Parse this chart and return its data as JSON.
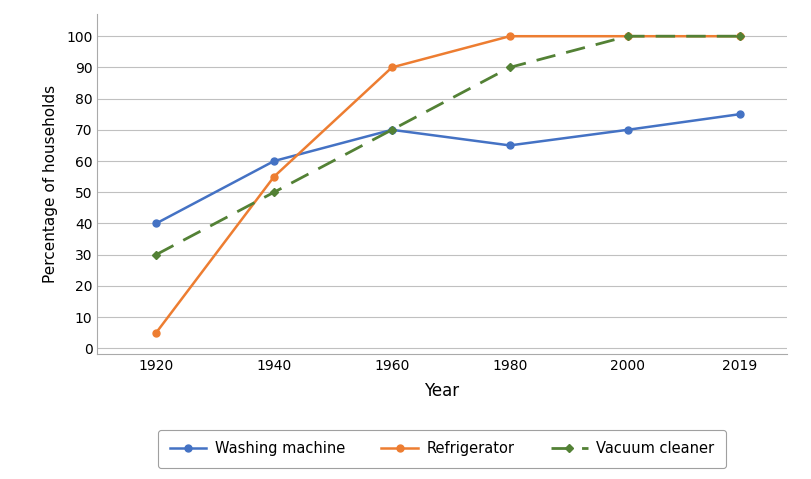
{
  "years": [
    1920,
    1940,
    1960,
    1980,
    2000,
    2019
  ],
  "washing_machine": [
    40,
    60,
    70,
    65,
    70,
    75
  ],
  "refrigerator": [
    5,
    55,
    90,
    100,
    100,
    100
  ],
  "vacuum_cleaner": [
    30,
    50,
    70,
    90,
    100,
    100
  ],
  "washing_machine_color": "#4472C4",
  "refrigerator_color": "#ED7D31",
  "vacuum_cleaner_color": "#538135",
  "xlabel": "Year",
  "ylabel": "Percentage of households",
  "ylim": [
    0,
    105
  ],
  "yticks": [
    0,
    10,
    20,
    30,
    40,
    50,
    60,
    70,
    80,
    90,
    100
  ],
  "legend_labels": [
    "Washing machine",
    "Refrigerator",
    "Vacuum cleaner"
  ],
  "background_color": "#ffffff",
  "grid_color": "#c0c0c0"
}
